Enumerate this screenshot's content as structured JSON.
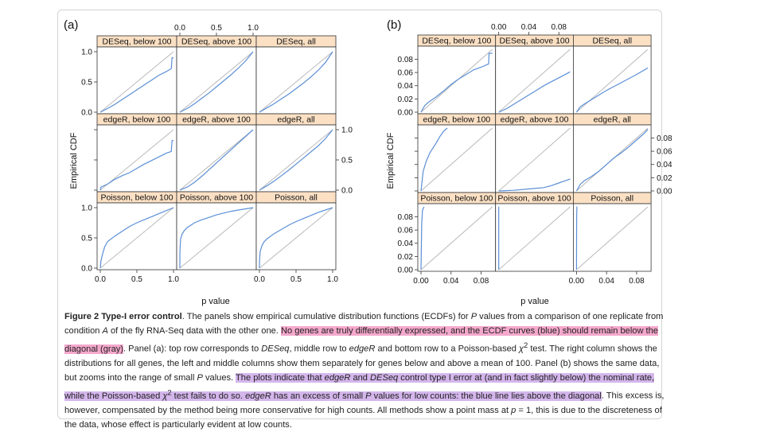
{
  "figure": {
    "panel_a_label": "(a)",
    "panel_b_label": "(b)",
    "y_axis_label": "Empirical CDF",
    "x_axis_label": "p value",
    "strips": {
      "r0c0": "DESeq, below 100",
      "r0c1": "DESeq, above 100",
      "r0c2": "DESeq, all",
      "r1c0": "edgeR, below 100",
      "r1c1": "edgeR, above 100",
      "r1c2": "edgeR, all",
      "r2c0": "Poisson, below 100",
      "r2c1": "Poisson, above 100",
      "r2c2": "Poisson, all"
    },
    "colors": {
      "ecdf": "#5b8fd6",
      "diagonal": "#b5b5b5",
      "strip": "#fbe0c4",
      "frame": "#333333"
    }
  },
  "chart_data": [
    {
      "type": "line",
      "panel": "(a)",
      "xlabel": "p value",
      "ylabel": "Empirical CDF",
      "xlim": [
        0,
        1
      ],
      "ylim": [
        0,
        1
      ],
      "ticks": [
        "0.0",
        "0.5",
        "1.0"
      ],
      "tick_values": [
        0,
        0.5,
        1
      ],
      "panels": [
        {
          "strip": "DESeq, below 100",
          "x": [
            0,
            0.1,
            0.2,
            0.3,
            0.4,
            0.5,
            0.6,
            0.7,
            0.8,
            0.9,
            0.97,
            0.98,
            1
          ],
          "y": [
            0,
            0.06,
            0.13,
            0.21,
            0.29,
            0.37,
            0.45,
            0.53,
            0.61,
            0.67,
            0.72,
            0.9,
            0.9
          ]
        },
        {
          "strip": "DESeq, above 100",
          "x": [
            0,
            0.1,
            0.2,
            0.3,
            0.4,
            0.5,
            0.6,
            0.7,
            0.8,
            0.9,
            1
          ],
          "y": [
            0,
            0.06,
            0.14,
            0.23,
            0.32,
            0.42,
            0.52,
            0.62,
            0.73,
            0.85,
            1
          ]
        },
        {
          "strip": "DESeq, all",
          "x": [
            0,
            0.1,
            0.2,
            0.3,
            0.4,
            0.5,
            0.6,
            0.7,
            0.8,
            0.9,
            1
          ],
          "y": [
            0,
            0.07,
            0.14,
            0.22,
            0.3,
            0.39,
            0.48,
            0.58,
            0.69,
            0.82,
            1
          ]
        },
        {
          "strip": "edgeR, below 100",
          "x": [
            0,
            0.01,
            0.1,
            0.2,
            0.3,
            0.4,
            0.5,
            0.6,
            0.7,
            0.8,
            0.9,
            0.97,
            0.98,
            1
          ],
          "y": [
            0,
            0.05,
            0.1,
            0.18,
            0.24,
            0.29,
            0.36,
            0.43,
            0.49,
            0.55,
            0.61,
            0.64,
            0.82,
            0.82
          ]
        },
        {
          "strip": "edgeR, above 100",
          "x": [
            0,
            0.1,
            0.2,
            0.3,
            0.4,
            0.5,
            0.6,
            0.7,
            0.8,
            0.9,
            1
          ],
          "y": [
            0,
            0.05,
            0.13,
            0.23,
            0.34,
            0.45,
            0.56,
            0.67,
            0.78,
            0.89,
            1
          ]
        },
        {
          "strip": "edgeR, all",
          "x": [
            0,
            0.1,
            0.2,
            0.3,
            0.4,
            0.5,
            0.6,
            0.7,
            0.8,
            0.9,
            1
          ],
          "y": [
            0,
            0.07,
            0.15,
            0.24,
            0.33,
            0.43,
            0.53,
            0.63,
            0.73,
            0.85,
            1
          ]
        },
        {
          "strip": "Poisson, below 100",
          "x": [
            0,
            0.01,
            0.03,
            0.06,
            0.1,
            0.2,
            0.3,
            0.4,
            0.5,
            0.6,
            0.7,
            0.8,
            0.9,
            1
          ],
          "y": [
            0,
            0.12,
            0.23,
            0.35,
            0.44,
            0.53,
            0.61,
            0.69,
            0.75,
            0.8,
            0.85,
            0.9,
            0.95,
            1
          ]
        },
        {
          "strip": "Poisson, above 100",
          "x": [
            0,
            0.001,
            0.01,
            0.03,
            0.06,
            0.1,
            0.2,
            0.3,
            0.4,
            0.5,
            0.6,
            0.7,
            0.8,
            0.9,
            1
          ],
          "y": [
            0,
            0.28,
            0.48,
            0.56,
            0.62,
            0.67,
            0.75,
            0.8,
            0.84,
            0.88,
            0.91,
            0.94,
            0.96,
            0.98,
            1
          ]
        },
        {
          "strip": "Poisson, all",
          "x": [
            0,
            0.002,
            0.01,
            0.03,
            0.06,
            0.1,
            0.2,
            0.3,
            0.4,
            0.5,
            0.6,
            0.7,
            0.8,
            0.9,
            1
          ],
          "y": [
            0,
            0.15,
            0.27,
            0.36,
            0.43,
            0.48,
            0.57,
            0.64,
            0.71,
            0.77,
            0.82,
            0.87,
            0.92,
            0.96,
            1
          ]
        }
      ]
    },
    {
      "type": "line",
      "panel": "(b)",
      "xlabel": "p value",
      "ylabel": "Empirical CDF",
      "xlim": [
        0,
        0.095
      ],
      "ylim": [
        0,
        0.095
      ],
      "ticks": [
        "0.00",
        "0.04",
        "0.08"
      ],
      "tick_values": [
        0,
        0.04,
        0.08
      ],
      "y_ticks": [
        "0.00",
        "0.02",
        "0.04",
        "0.06",
        "0.08"
      ],
      "y_tick_values": [
        0,
        0.02,
        0.04,
        0.06,
        0.08
      ],
      "panels": [
        {
          "strip": "DESeq, below 100",
          "x": [
            0,
            0.005,
            0.01,
            0.02,
            0.03,
            0.04,
            0.05,
            0.06,
            0.07,
            0.08,
            0.09,
            0.0905,
            0.095
          ],
          "y": [
            0,
            0.01,
            0.015,
            0.023,
            0.032,
            0.042,
            0.05,
            0.057,
            0.064,
            0.068,
            0.073,
            0.089,
            0.089
          ]
        },
        {
          "strip": "DESeq, above 100",
          "x": [
            0,
            0.01,
            0.02,
            0.03,
            0.04,
            0.05,
            0.06,
            0.07,
            0.08,
            0.095
          ],
          "y": [
            0,
            0.005,
            0.012,
            0.019,
            0.026,
            0.033,
            0.04,
            0.046,
            0.052,
            0.061
          ]
        },
        {
          "strip": "DESeq, all",
          "x": [
            0,
            0.005,
            0.01,
            0.02,
            0.03,
            0.04,
            0.05,
            0.06,
            0.07,
            0.08,
            0.095
          ],
          "y": [
            0,
            0.008,
            0.012,
            0.019,
            0.026,
            0.033,
            0.039,
            0.045,
            0.051,
            0.057,
            0.067
          ]
        },
        {
          "strip": "edgeR, below 100",
          "x": [
            0,
            0.003,
            0.007,
            0.012,
            0.02,
            0.025,
            0.03,
            0.035
          ],
          "y": [
            0,
            0.03,
            0.045,
            0.058,
            0.072,
            0.082,
            0.09,
            0.095
          ]
        },
        {
          "strip": "edgeR, above 100",
          "x": [
            0,
            0.02,
            0.04,
            0.06,
            0.07,
            0.08,
            0.09,
            0.095
          ],
          "y": [
            0,
            0.001,
            0.003,
            0.005,
            0.008,
            0.012,
            0.016,
            0.018
          ]
        },
        {
          "strip": "edgeR, all",
          "x": [
            0,
            0.005,
            0.01,
            0.02,
            0.03,
            0.04,
            0.05,
            0.06,
            0.07,
            0.08,
            0.09,
            0.095
          ],
          "y": [
            0,
            0.01,
            0.015,
            0.022,
            0.03,
            0.04,
            0.05,
            0.058,
            0.067,
            0.077,
            0.087,
            0.093
          ]
        },
        {
          "strip": "Poisson, below 100",
          "x": [
            0,
            0.0005,
            0.001,
            0.002,
            0.004
          ],
          "y": [
            0,
            0.04,
            0.07,
            0.09,
            0.095
          ]
        },
        {
          "strip": "Poisson, above 100",
          "x": [
            0,
            5e-05,
            0.0001,
            0.0003
          ],
          "y": [
            0,
            0.09,
            0.095,
            0.095
          ]
        },
        {
          "strip": "Poisson, all",
          "x": [
            0,
            0.0002,
            0.0005,
            0.001
          ],
          "y": [
            0,
            0.08,
            0.095,
            0.095
          ]
        }
      ]
    }
  ],
  "caption": {
    "title": "Figure 2 Type-I error control",
    "s1": ". The panels show empirical cumulative distribution functions (ECDFs) for ",
    "s2": "P",
    "s3": " values from a comparison of one replicate from condition ",
    "s4": "A",
    "s5": " of the fly RNA-Seq data with the other one. ",
    "h1": "No genes are truly differentially expressed, and the ECDF curves (blue) should remain below the diagonal (gray)",
    "s6": ". Panel (a): top row corresponds to ",
    "s7": "DESeq",
    "s8": ", middle row to ",
    "s9": "edgeR",
    "s10": " and bottom row to a Poisson-based ",
    "s11": "χ",
    "s12": "2",
    "s13": " test. The right column shows the distributions for all genes, the left and middle columns show them separately for genes below and above a mean of 100. Panel (b) shows the same data, but zooms into the range of small ",
    "s14": "P",
    "s15": " values. ",
    "h2a": "The plots indicate that ",
    "h2b": "edgeR",
    "h2c": " and ",
    "h2d": "DESeq",
    "h2e": " control type I error at (and in fact slightly below) the nominal rate, while the Poisson-based ",
    "h2f": "χ",
    "h2g": "2",
    "h2h": " test fails to do so. ",
    "h2i": "edgeR",
    "h2j": " has an excess of small ",
    "h2k": "P",
    "h2l": " values for low counts: the blue line lies above the diagonal",
    "s16": ". This excess is, however, compensated by the method being more conservative for high counts. All methods show a point mass at ",
    "s17": "p",
    "s18": " = 1, this is due to the discreteness of the data, whose effect is particularly evident at low counts."
  }
}
